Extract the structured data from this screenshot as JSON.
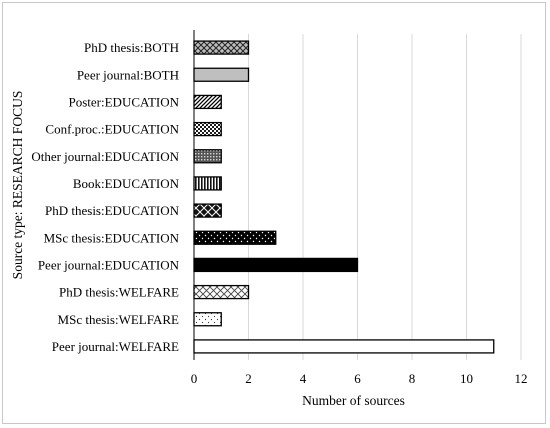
{
  "chart_data": {
    "type": "bar",
    "orientation": "horizontal",
    "categories": [
      "PhD thesis:BOTH",
      "Peer journal:BOTH",
      "Poster:EDUCATION",
      "Conf.proc.:EDUCATION",
      "Other journal:EDUCATION",
      "Book:EDUCATION",
      "PhD thesis:EDUCATION",
      "MSc thesis:EDUCATION",
      "Peer journal:EDUCATION",
      "PhD thesis:WELFARE",
      "MSc thesis:WELFARE",
      "Peer journal:WELFARE"
    ],
    "values": [
      2,
      2,
      1,
      1,
      1,
      1,
      1,
      3,
      6,
      2,
      1,
      11
    ],
    "fills": [
      "pat-dcross",
      "solid-lightgray",
      "pat-diag",
      "pat-smallcheck",
      "pat-grid",
      "pat-vert",
      "pat-lattice",
      "pat-dots-dark",
      "solid-black",
      "pat-lightcross",
      "pat-sparse-dots",
      "solid-white"
    ],
    "xlabel": "Number of sources",
    "ylabel": "Source type: RESEARCH FOCUS",
    "xlim": [
      0,
      12
    ],
    "xticks": [
      "0",
      "2",
      "4",
      "6",
      "8",
      "10",
      "12"
    ],
    "grid": true
  }
}
